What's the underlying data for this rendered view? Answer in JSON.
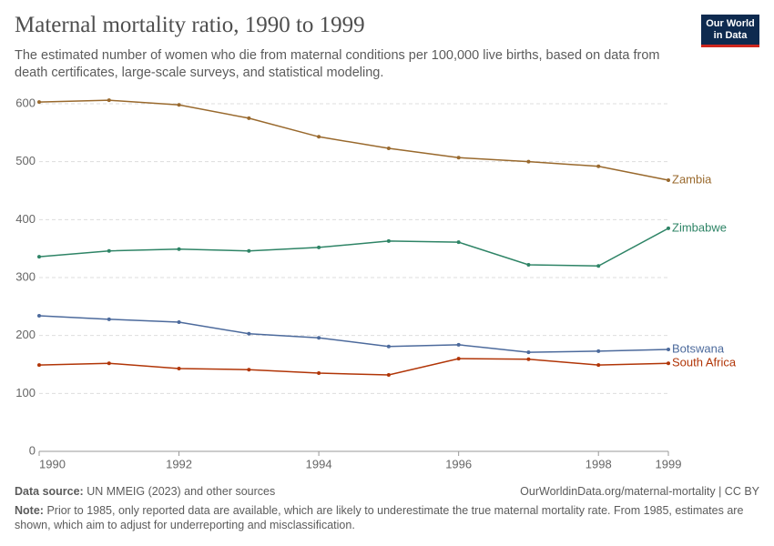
{
  "chart_data": {
    "type": "line",
    "title": "Maternal mortality ratio, 1990 to 1999",
    "subtitle": "The estimated number of women who die from maternal conditions per 100,000 live births, based on data from death certificates, large-scale surveys, and statistical modeling.",
    "logo": [
      "Our World",
      "in Data"
    ],
    "x": [
      1990,
      1991,
      1992,
      1993,
      1994,
      1995,
      1996,
      1997,
      1998,
      1999
    ],
    "xlim": [
      1990,
      1999
    ],
    "xticks": [
      1990,
      1992,
      1994,
      1996,
      1998,
      1999
    ],
    "ylim": [
      0,
      600
    ],
    "yticks": [
      0,
      100,
      200,
      300,
      400,
      500,
      600
    ],
    "grid": true,
    "series": [
      {
        "name": "Zambia",
        "color": "#99692d",
        "values": [
          603,
          606,
          598,
          575,
          543,
          523,
          507,
          500,
          492,
          468
        ]
      },
      {
        "name": "Zimbabwe",
        "color": "#2e8466",
        "values": [
          336,
          346,
          349,
          346,
          352,
          363,
          361,
          322,
          320,
          385
        ]
      },
      {
        "name": "Botswana",
        "color": "#4c6a9c",
        "values": [
          234,
          228,
          223,
          203,
          196,
          181,
          184,
          171,
          173,
          176
        ]
      },
      {
        "name": "South Africa",
        "color": "#b13507",
        "values": [
          149,
          152,
          143,
          141,
          135,
          132,
          160,
          159,
          149,
          152
        ]
      }
    ],
    "source_label": "Data source:",
    "source": "UN MMEIG (2023) and other sources",
    "url": "OurWorldinData.org/maternal-mortality | CC BY",
    "note_label": "Note:",
    "note": "Prior to 1985, only reported data are available, which are likely to underestimate the true maternal mortality rate. From 1985, estimates are shown, which aim to adjust for underreporting and misclassification."
  }
}
